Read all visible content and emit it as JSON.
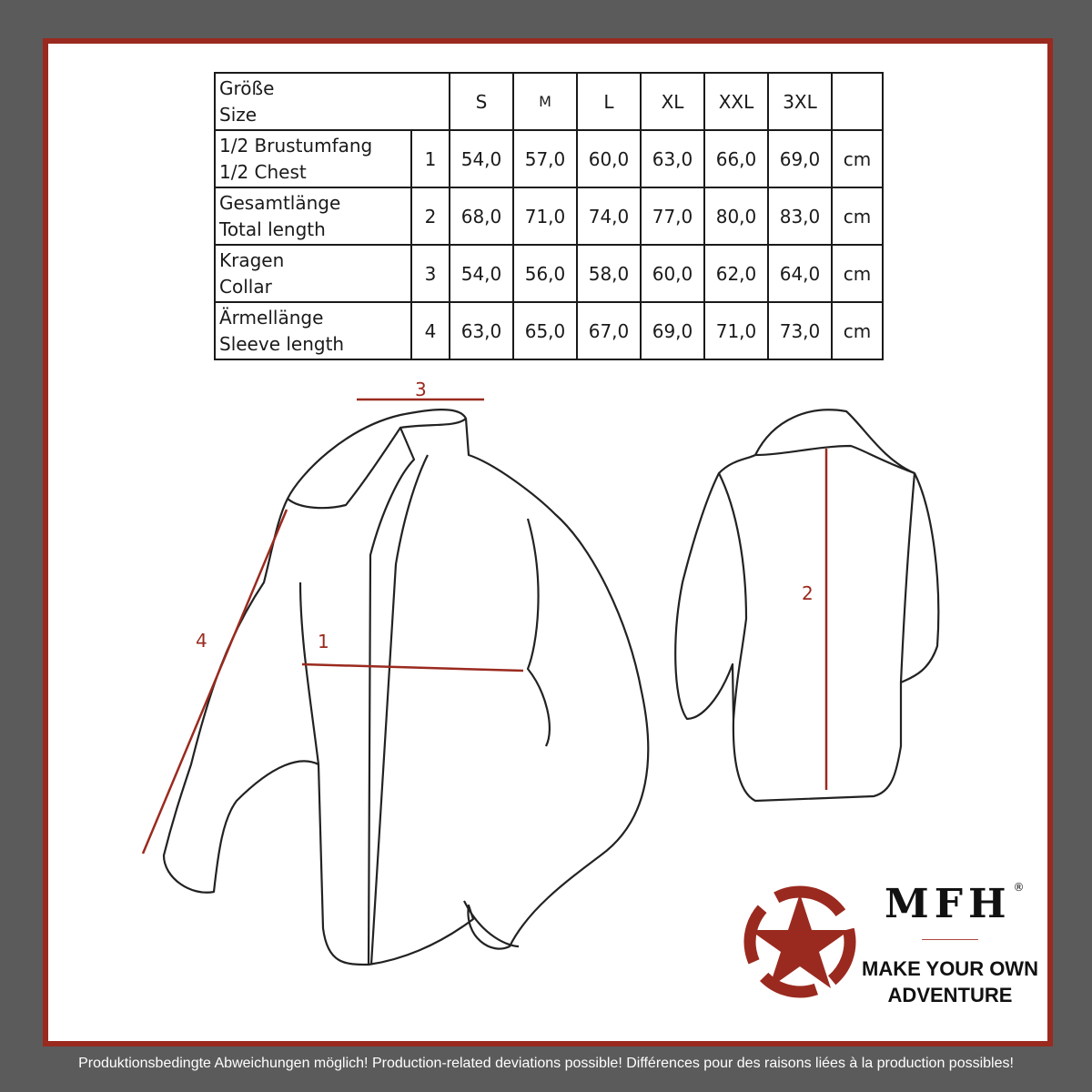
{
  "table": {
    "header": {
      "label_de": "Größe",
      "label_en": "Size",
      "sizes": [
        "S",
        "M",
        "L",
        "XL",
        "XXL",
        "3XL"
      ]
    },
    "rows": [
      {
        "label_de": "1/2 Brustumfang",
        "label_en": "1/2 Chest",
        "num": "1",
        "values": [
          "54,0",
          "57,0",
          "60,0",
          "63,0",
          "66,0",
          "69,0"
        ],
        "unit": "cm"
      },
      {
        "label_de": "Gesamtlänge",
        "label_en": "Total length",
        "num": "2",
        "values": [
          "68,0",
          "71,0",
          "74,0",
          "77,0",
          "80,0",
          "83,0"
        ],
        "unit": "cm"
      },
      {
        "label_de": "Kragen",
        "label_en": "Collar",
        "num": "3",
        "values": [
          "54,0",
          "56,0",
          "58,0",
          "60,0",
          "62,0",
          "64,0"
        ],
        "unit": "cm"
      },
      {
        "label_de": "Ärmellänge",
        "label_en": "Sleeve length",
        "num": "4",
        "values": [
          "63,0",
          "65,0",
          "67,0",
          "69,0",
          "71,0",
          "73,0"
        ],
        "unit": "cm"
      }
    ]
  },
  "measurements": {
    "m1": "1",
    "m2": "2",
    "m3": "3",
    "m4": "4"
  },
  "logo": {
    "brand": "MFH",
    "registered": "®",
    "slogan_line1": "MAKE YOUR OWN",
    "slogan_line2": "ADVENTURE"
  },
  "colors": {
    "accent": "#9a2a1f",
    "background": "#5b5b5b"
  },
  "footer": "Produktionsbedingte Abweichungen möglich! Production-related deviations possible! Différences pour des raisons liées à la production possibles!"
}
